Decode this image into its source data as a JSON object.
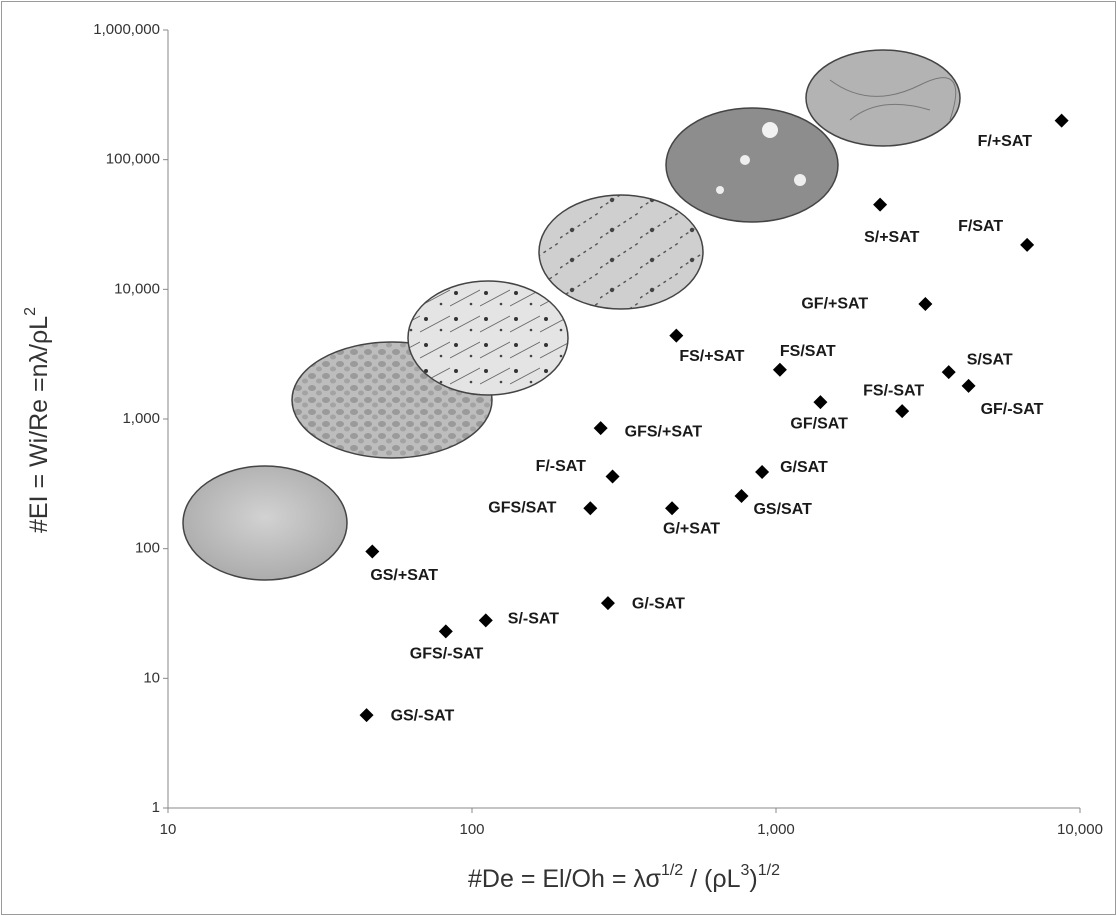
{
  "chart_data": {
    "type": "scatter",
    "x_label_parts": [
      "#De = El/Oh =  λσ",
      "1/2",
      " / (ρL",
      "3",
      ")",
      "1/2"
    ],
    "y_label_parts": [
      "#EI = Wi/Re =nλ/ρL",
      "2"
    ],
    "xscale": "log",
    "yscale": "log",
    "xlim": [
      10,
      10000
    ],
    "ylim": [
      1,
      1000000
    ],
    "xticks": [
      10,
      100,
      {
        "value": 1000,
        "label": "1,000"
      },
      {
        "value": 10000,
        "label": "10,000"
      }
    ],
    "yticks": [
      1,
      10,
      100,
      {
        "value": 1000,
        "label": "1,000"
      },
      {
        "value": 10000,
        "label": "10,000"
      },
      {
        "value": 100000,
        "label": "100,000"
      },
      {
        "value": 1000000,
        "label": "1,000,000"
      }
    ],
    "series": [
      {
        "color": "#000000",
        "point_labels": [
          "F/+SAT",
          "S/+SAT",
          "F/SAT",
          "GF/+SAT",
          "FS/+SAT",
          "FS/SAT",
          "S/SAT",
          "GF/-SAT",
          "GF/SAT",
          "FS/-SAT",
          "GFS/+SAT",
          "G/SAT",
          "F/-SAT",
          "GS/SAT",
          "GFS/SAT",
          "G/+SAT",
          "GS/+SAT",
          "G/-SAT",
          "S/-SAT",
          "GFS/-SAT",
          "GS/-SAT"
        ],
        "x": [
          8700,
          2200,
          6700,
          3100,
          470,
          1030,
          3700,
          4300,
          1400,
          2600,
          265,
          900,
          290,
          770,
          245,
          455,
          47,
          280,
          111,
          82,
          45
        ],
        "values": [
          200000,
          45000,
          22000,
          7700,
          4400,
          2400,
          2300,
          1800,
          1350,
          1150,
          850,
          390,
          360,
          255,
          205,
          205,
          95,
          38,
          28,
          23,
          5.2
        ]
      }
    ]
  }
}
